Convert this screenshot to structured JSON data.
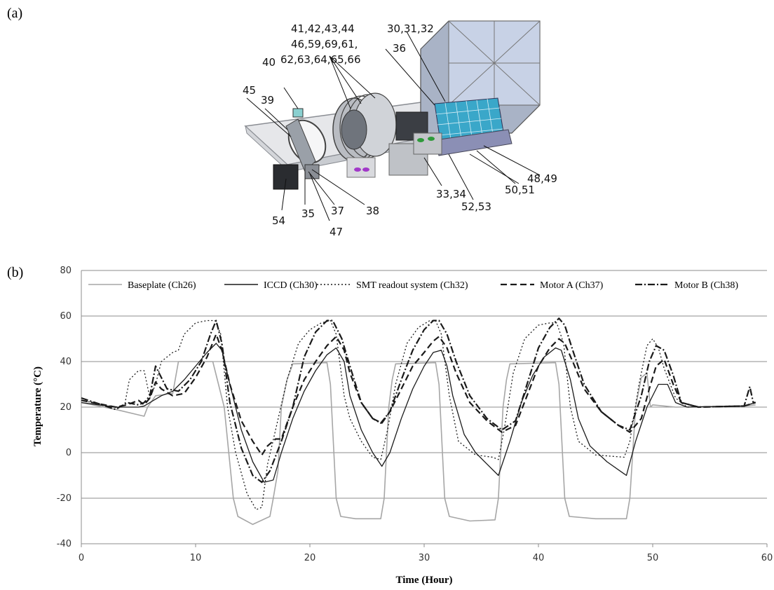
{
  "panels": {
    "a_label": "(a)",
    "b_label": "(b)"
  },
  "diagram": {
    "callouts": [
      "41,42,43,44",
      "46,59,69,61,",
      "62,63,64,65,66",
      "30,31,32",
      "36",
      "40",
      "45",
      "39",
      "48,49",
      "50,51",
      "33,34",
      "52,53",
      "54",
      "35",
      "37",
      "38",
      "47"
    ]
  },
  "chart_data": {
    "type": "line",
    "xlabel": "Time (Hour)",
    "ylabel": "Temperature (°C)",
    "xlim": [
      0,
      60
    ],
    "ylim": [
      -40,
      80
    ],
    "xticks": [
      0,
      10,
      20,
      30,
      40,
      50,
      60
    ],
    "yticks": [
      -40,
      -20,
      0,
      20,
      40,
      60,
      80
    ],
    "grid": "horizontal",
    "legend_position": "top",
    "series": [
      {
        "name": "Baseplate (Ch26)",
        "color": "#a6a6a6",
        "dash": "solid",
        "points": [
          [
            0,
            22
          ],
          [
            3,
            19
          ],
          [
            5.5,
            16
          ],
          [
            5.8,
            20
          ],
          [
            6.5,
            25
          ],
          [
            8,
            26
          ],
          [
            8.5,
            40
          ],
          [
            11.5,
            40
          ],
          [
            12.5,
            20
          ],
          [
            13.3,
            -20
          ],
          [
            13.7,
            -28
          ],
          [
            15,
            -31.5
          ],
          [
            16.5,
            -28
          ],
          [
            16.8,
            -20
          ],
          [
            17.2,
            -8
          ],
          [
            17.5,
            20
          ],
          [
            18,
            32
          ],
          [
            18.5,
            39
          ],
          [
            21.5,
            39.5
          ],
          [
            21.8,
            30
          ],
          [
            22.3,
            -20
          ],
          [
            22.7,
            -28
          ],
          [
            24,
            -29
          ],
          [
            26.2,
            -29
          ],
          [
            26.5,
            -20
          ],
          [
            26.9,
            20
          ],
          [
            27.2,
            32
          ],
          [
            27.5,
            39
          ],
          [
            31,
            39.5
          ],
          [
            31.3,
            30
          ],
          [
            31.8,
            -20
          ],
          [
            32.2,
            -28
          ],
          [
            34,
            -30
          ],
          [
            36.2,
            -29.5
          ],
          [
            36.5,
            -20
          ],
          [
            36.9,
            20
          ],
          [
            37.2,
            32
          ],
          [
            37.5,
            39
          ],
          [
            41.5,
            39.5
          ],
          [
            41.8,
            30
          ],
          [
            42.3,
            -20
          ],
          [
            42.7,
            -28
          ],
          [
            45,
            -29
          ],
          [
            47.7,
            -29
          ],
          [
            48,
            -20
          ],
          [
            48.5,
            20
          ],
          [
            49,
            33
          ],
          [
            49.5,
            35
          ],
          [
            49.8,
            20
          ],
          [
            50,
            21
          ],
          [
            52,
            20
          ],
          [
            58,
            20.5
          ],
          [
            59,
            21
          ]
        ]
      },
      {
        "name": "ICCD (Ch30)",
        "color": "#1a1a1a",
        "dash": "solid",
        "points": [
          [
            0,
            22
          ],
          [
            3,
            20
          ],
          [
            5,
            20
          ],
          [
            5.5,
            20.5
          ],
          [
            6,
            22
          ],
          [
            7,
            25
          ],
          [
            8,
            27
          ],
          [
            9,
            32
          ],
          [
            10,
            38
          ],
          [
            11,
            44
          ],
          [
            11.8,
            48
          ],
          [
            12.3,
            45
          ],
          [
            13,
            30
          ],
          [
            14,
            10
          ],
          [
            15,
            -4
          ],
          [
            16,
            -13
          ],
          [
            16.8,
            -12
          ],
          [
            17.5,
            0
          ],
          [
            18.5,
            15
          ],
          [
            19.5,
            27
          ],
          [
            20.5,
            36
          ],
          [
            21.5,
            43
          ],
          [
            22.3,
            46
          ],
          [
            23,
            40
          ],
          [
            23.5,
            25
          ],
          [
            24.5,
            10
          ],
          [
            25.5,
            0
          ],
          [
            26.3,
            -6
          ],
          [
            27,
            0
          ],
          [
            28,
            15
          ],
          [
            29,
            28
          ],
          [
            30,
            38
          ],
          [
            30.8,
            44
          ],
          [
            31.5,
            45
          ],
          [
            32,
            38
          ],
          [
            32.5,
            25
          ],
          [
            33.5,
            8
          ],
          [
            34.5,
            0
          ],
          [
            35.5,
            -5
          ],
          [
            36.5,
            -10
          ],
          [
            37.5,
            5
          ],
          [
            38.5,
            22
          ],
          [
            39.5,
            34
          ],
          [
            40.5,
            42
          ],
          [
            41.5,
            46
          ],
          [
            42,
            45
          ],
          [
            42.8,
            32
          ],
          [
            43.5,
            15
          ],
          [
            44.5,
            3
          ],
          [
            46,
            -4
          ],
          [
            47.7,
            -10
          ],
          [
            48.5,
            5
          ],
          [
            49.5,
            20
          ],
          [
            50.5,
            30
          ],
          [
            51.3,
            30
          ],
          [
            52,
            22
          ],
          [
            53,
            20
          ],
          [
            58,
            20.5
          ],
          [
            59,
            22
          ]
        ]
      },
      {
        "name": "SMT readout system (Ch32)",
        "color": "#1a1a1a",
        "dash": "2,3",
        "points": [
          [
            0,
            23
          ],
          [
            3,
            20
          ],
          [
            3.8,
            21
          ],
          [
            4.2,
            32
          ],
          [
            5,
            36
          ],
          [
            5.5,
            36
          ],
          [
            6,
            24
          ],
          [
            6.5,
            30
          ],
          [
            7,
            40
          ],
          [
            8,
            44
          ],
          [
            8.5,
            45
          ],
          [
            9,
            52
          ],
          [
            10,
            57
          ],
          [
            11,
            58
          ],
          [
            11.7,
            58
          ],
          [
            12.2,
            52
          ],
          [
            12.8,
            20
          ],
          [
            13.5,
            0
          ],
          [
            14.5,
            -18
          ],
          [
            15.3,
            -25
          ],
          [
            15.8,
            -24
          ],
          [
            16.3,
            -5
          ],
          [
            17,
            10
          ],
          [
            18,
            32
          ],
          [
            19,
            48
          ],
          [
            20,
            54
          ],
          [
            21,
            57
          ],
          [
            21.8,
            58
          ],
          [
            22.3,
            52
          ],
          [
            23,
            25
          ],
          [
            23.5,
            15
          ],
          [
            24.5,
            5
          ],
          [
            25.5,
            -2
          ],
          [
            26.2,
            -3
          ],
          [
            26.8,
            10
          ],
          [
            27.5,
            30
          ],
          [
            28.5,
            48
          ],
          [
            29.5,
            55
          ],
          [
            30.5,
            58
          ],
          [
            31,
            58
          ],
          [
            31.5,
            52
          ],
          [
            32.2,
            25
          ],
          [
            33,
            5
          ],
          [
            34.5,
            -1
          ],
          [
            36,
            -2
          ],
          [
            36.5,
            -3
          ],
          [
            37,
            10
          ],
          [
            37.8,
            35
          ],
          [
            38.8,
            50
          ],
          [
            40,
            56
          ],
          [
            41,
            57
          ],
          [
            41.6,
            57
          ],
          [
            42.2,
            48
          ],
          [
            42.8,
            20
          ],
          [
            43.5,
            5
          ],
          [
            45,
            -1
          ],
          [
            47.5,
            -2
          ],
          [
            48,
            5
          ],
          [
            48.8,
            30
          ],
          [
            49.5,
            47
          ],
          [
            50,
            50
          ],
          [
            50.5,
            46
          ],
          [
            51,
            37
          ],
          [
            52,
            24
          ],
          [
            53,
            20
          ],
          [
            58,
            20.5
          ],
          [
            59,
            22
          ]
        ]
      },
      {
        "name": "Motor A (Ch37)",
        "color": "#1a1a1a",
        "dash": "9,5",
        "points": [
          [
            0,
            23
          ],
          [
            3,
            20
          ],
          [
            4,
            21
          ],
          [
            5,
            23
          ],
          [
            5.5,
            21
          ],
          [
            6,
            24
          ],
          [
            6.5,
            31
          ],
          [
            7,
            28
          ],
          [
            8,
            25
          ],
          [
            9,
            26
          ],
          [
            10,
            33
          ],
          [
            11,
            42
          ],
          [
            11.8,
            52
          ],
          [
            12.3,
            45
          ],
          [
            13,
            30
          ],
          [
            14,
            14
          ],
          [
            15,
            5
          ],
          [
            15.8,
            -1
          ],
          [
            16.3,
            3
          ],
          [
            17,
            6
          ],
          [
            17.5,
            6
          ],
          [
            18.5,
            20
          ],
          [
            19.5,
            32
          ],
          [
            20.5,
            40
          ],
          [
            21.5,
            47
          ],
          [
            22.3,
            51
          ],
          [
            23,
            45
          ],
          [
            23.5,
            35
          ],
          [
            24.5,
            22
          ],
          [
            25.5,
            15
          ],
          [
            26.3,
            13
          ],
          [
            27,
            18
          ],
          [
            28,
            28
          ],
          [
            29,
            38
          ],
          [
            30,
            44
          ],
          [
            30.8,
            49
          ],
          [
            31.3,
            51
          ],
          [
            32,
            46
          ],
          [
            32.8,
            35
          ],
          [
            34,
            22
          ],
          [
            35.5,
            14
          ],
          [
            36.8,
            9
          ],
          [
            38,
            12
          ],
          [
            39,
            25
          ],
          [
            40,
            38
          ],
          [
            41,
            46
          ],
          [
            41.8,
            50
          ],
          [
            42.3,
            48
          ],
          [
            43,
            40
          ],
          [
            44,
            28
          ],
          [
            45.5,
            18
          ],
          [
            47,
            12
          ],
          [
            48,
            9
          ],
          [
            49,
            15
          ],
          [
            49.7,
            28
          ],
          [
            50.3,
            38
          ],
          [
            51,
            41
          ],
          [
            51.8,
            30
          ],
          [
            52.5,
            22
          ],
          [
            54,
            20
          ],
          [
            58,
            20.5
          ],
          [
            59,
            22
          ]
        ]
      },
      {
        "name": "Motor B (Ch38)",
        "color": "#1a1a1a",
        "dash": "10,3,2,3",
        "points": [
          [
            0,
            24
          ],
          [
            3,
            19
          ],
          [
            4,
            22
          ],
          [
            5,
            21
          ],
          [
            5.5,
            22
          ],
          [
            6,
            25
          ],
          [
            6.5,
            38
          ],
          [
            7,
            33
          ],
          [
            7.5,
            28
          ],
          [
            8.5,
            27
          ],
          [
            9.5,
            32
          ],
          [
            10.5,
            40
          ],
          [
            11.3,
            52
          ],
          [
            11.8,
            58
          ],
          [
            12.3,
            48
          ],
          [
            13,
            22
          ],
          [
            14,
            2
          ],
          [
            15,
            -10
          ],
          [
            15.8,
            -13
          ],
          [
            16.5,
            -8
          ],
          [
            17.5,
            5
          ],
          [
            18.5,
            20
          ],
          [
            19.5,
            42
          ],
          [
            20.5,
            53
          ],
          [
            21.5,
            58
          ],
          [
            22,
            58
          ],
          [
            22.8,
            50
          ],
          [
            23.5,
            38
          ],
          [
            24.5,
            22
          ],
          [
            25.5,
            15
          ],
          [
            26.2,
            13
          ],
          [
            27,
            18
          ],
          [
            28,
            32
          ],
          [
            29,
            45
          ],
          [
            30,
            54
          ],
          [
            30.8,
            58
          ],
          [
            31.3,
            58
          ],
          [
            32,
            52
          ],
          [
            32.8,
            40
          ],
          [
            34,
            25
          ],
          [
            35.5,
            15
          ],
          [
            36.8,
            10
          ],
          [
            38,
            14
          ],
          [
            39,
            30
          ],
          [
            40,
            46
          ],
          [
            41,
            55
          ],
          [
            41.8,
            59
          ],
          [
            42.3,
            56
          ],
          [
            43,
            45
          ],
          [
            44,
            30
          ],
          [
            45.5,
            18
          ],
          [
            47,
            12
          ],
          [
            48,
            10
          ],
          [
            49,
            25
          ],
          [
            49.7,
            40
          ],
          [
            50.3,
            47
          ],
          [
            51,
            45
          ],
          [
            51.8,
            34
          ],
          [
            52.5,
            22
          ],
          [
            54,
            20
          ],
          [
            58,
            20.5
          ],
          [
            58.5,
            29
          ],
          [
            58.8,
            22
          ],
          [
            59,
            22
          ]
        ]
      }
    ]
  }
}
